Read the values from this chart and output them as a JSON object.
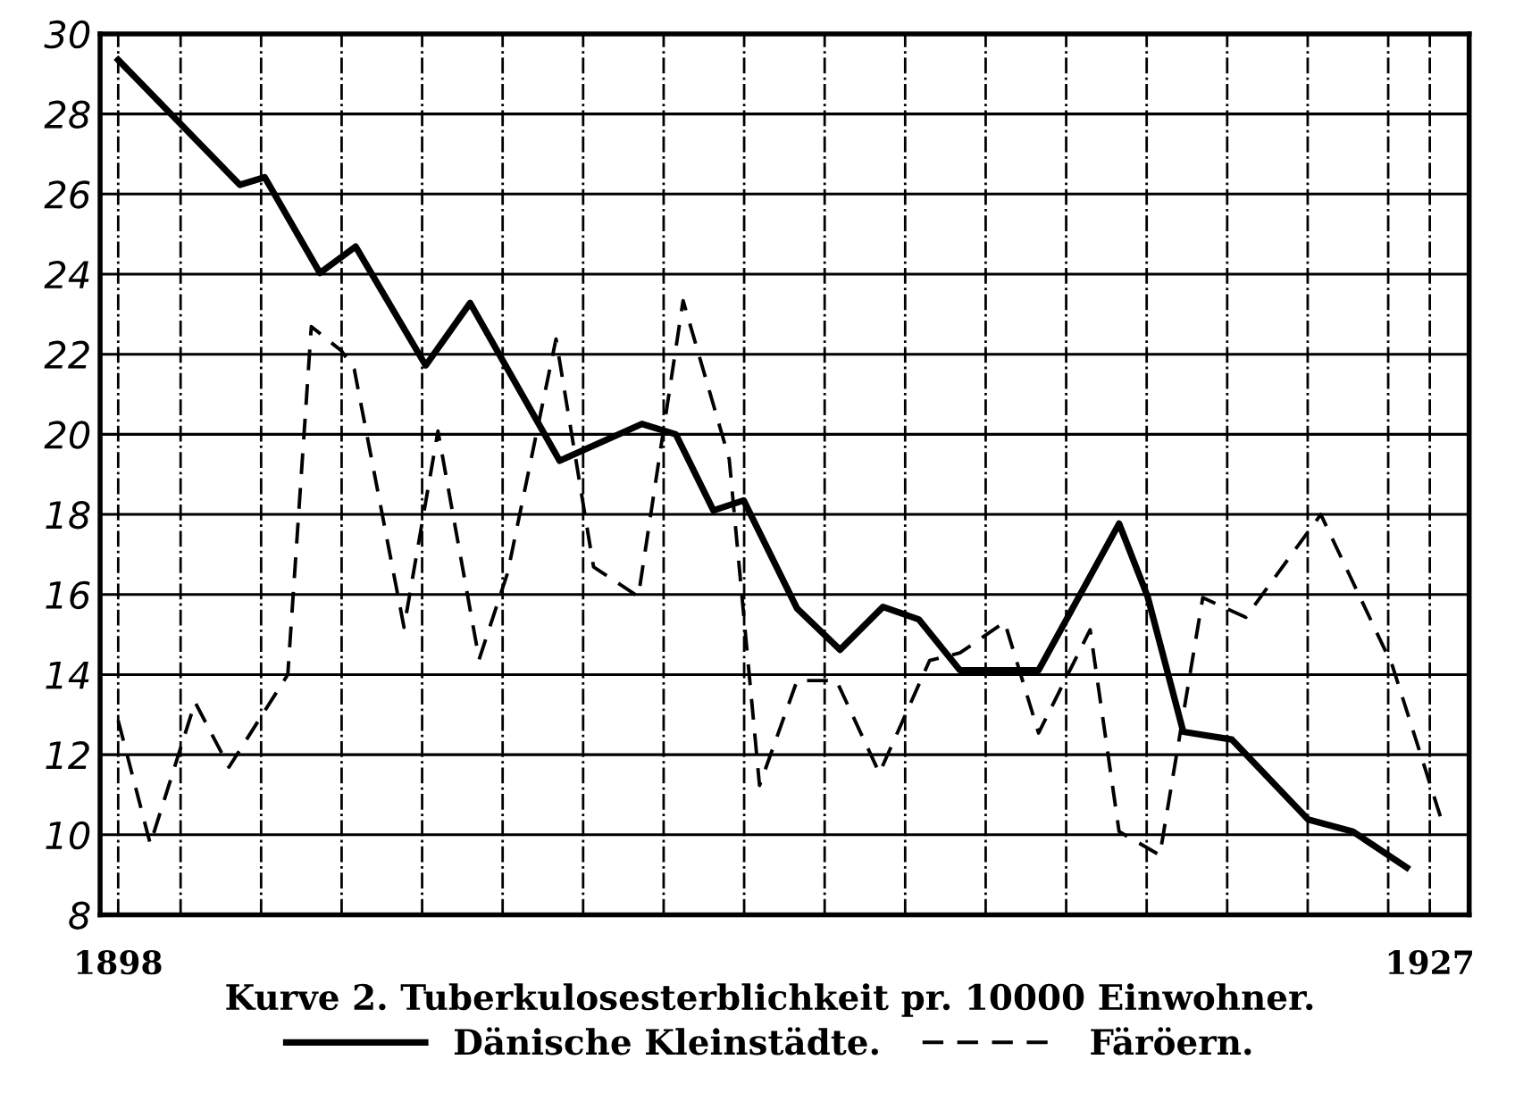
{
  "chart_data": {
    "type": "line",
    "title": "Kurve 2. Tuberkulosesterblichkeit pr. 10000 Einwohner.",
    "xlim": [
      1897.6,
      1927.87
    ],
    "xticks": [
      {
        "value": 1898,
        "label": "1898"
      },
      {
        "value": 1899.38,
        "label": null
      },
      {
        "value": 1901.16,
        "label": null
      },
      {
        "value": 1902.94,
        "label": null
      },
      {
        "value": 1904.72,
        "label": null
      },
      {
        "value": 1906.5,
        "label": null
      },
      {
        "value": 1908.28,
        "label": null
      },
      {
        "value": 1910.06,
        "label": null
      },
      {
        "value": 1911.84,
        "label": null
      },
      {
        "value": 1913.62,
        "label": null
      },
      {
        "value": 1915.4,
        "label": null
      },
      {
        "value": 1917.18,
        "label": null
      },
      {
        "value": 1918.96,
        "label": null
      },
      {
        "value": 1920.74,
        "label": null
      },
      {
        "value": 1922.52,
        "label": null
      },
      {
        "value": 1924.3,
        "label": null
      },
      {
        "value": 1926.08,
        "label": null
      },
      {
        "value": 1927,
        "label": "1927"
      }
    ],
    "ylim": [
      8,
      30
    ],
    "yticks": [
      8,
      10,
      12,
      14,
      16,
      18,
      20,
      22,
      24,
      26,
      28,
      30
    ],
    "grid": true,
    "legend": "bottom",
    "marker": "none",
    "series": [
      {
        "name": "Dänische Kleinstädte.",
        "color": "#000000",
        "line_style": "solid",
        "x": [
          1898.0,
          1900.69,
          1901.24,
          1902.46,
          1903.25,
          1904.8,
          1905.78,
          1907.76,
          1909.58,
          1910.33,
          1911.16,
          1911.83,
          1913.01,
          1913.96,
          1914.91,
          1915.7,
          1916.61,
          1918.35,
          1920.13,
          1920.76,
          1921.55,
          1922.62,
          1924.31,
          1925.3,
          1926.49
        ],
        "values": [
          29.35,
          26.23,
          26.42,
          24.03,
          24.69,
          21.72,
          23.28,
          19.34,
          20.26,
          20.0,
          18.1,
          18.35,
          15.65,
          14.62,
          15.69,
          15.38,
          14.11,
          14.11,
          17.77,
          15.95,
          12.57,
          12.38,
          10.38,
          10.08,
          9.18
        ]
      },
      {
        "name": "Färöern.",
        "color": "#000000",
        "line_style": "dashed",
        "x": [
          1898.0,
          1898.71,
          1899.7,
          1900.45,
          1901.75,
          1902.27,
          1902.94,
          1903.22,
          1904.32,
          1905.07,
          1905.98,
          1906.61,
          1907.68,
          1908.51,
          1909.5,
          1910.49,
          1911.51,
          1912.18,
          1913.01,
          1913.88,
          1914.83,
          1915.94,
          1916.61,
          1917.6,
          1918.35,
          1919.49,
          1920.13,
          1921.03,
          1921.98,
          1922.93,
          1924.59,
          1926.17,
          1927.32
        ],
        "values": [
          12.85,
          9.77,
          13.31,
          11.69,
          14.0,
          22.69,
          22.08,
          21.62,
          15.18,
          20.08,
          14.38,
          16.54,
          22.38,
          16.69,
          15.95,
          23.34,
          19.38,
          11.23,
          13.85,
          13.85,
          11.54,
          14.35,
          14.54,
          15.31,
          12.54,
          15.12,
          10.08,
          9.49,
          15.92,
          15.43,
          18.0,
          14.23,
          10.15
        ]
      }
    ]
  }
}
